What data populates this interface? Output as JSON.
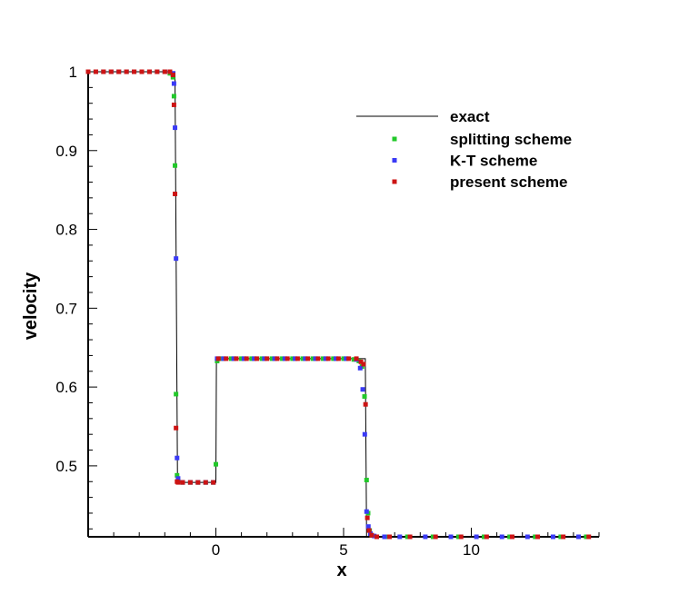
{
  "chart_data": {
    "type": "scatter",
    "xlabel": "x",
    "ylabel": "velocity",
    "xlim": [
      -5,
      15
    ],
    "ylim": [
      0.41,
      1.0
    ],
    "grid": false,
    "legend_position": "top-right",
    "x_ticks": [
      0,
      5,
      10
    ],
    "x_tick_labels": [
      "0",
      "5",
      "10"
    ],
    "y_ticks": [
      0.5,
      0.6,
      0.7,
      0.8,
      0.9,
      1.0
    ],
    "y_tick_labels": [
      "0.5",
      "0.6",
      "0.7",
      "0.8",
      "0.9",
      "1"
    ],
    "line": {
      "name": "exact",
      "color": "#000000",
      "x": [
        -5,
        -1.6,
        -1.5,
        0,
        0.02,
        5.85,
        5.9,
        15
      ],
      "y": [
        1.0,
        1.0,
        0.479,
        0.479,
        0.636,
        0.636,
        0.41,
        0.41
      ]
    },
    "series": [
      {
        "name": "splitting scheme",
        "color": "#22c82a",
        "x": [
          -5.0,
          -4.7,
          -4.4,
          -4.1,
          -3.8,
          -3.5,
          -3.2,
          -2.9,
          -2.6,
          -2.3,
          -2.0,
          -1.8,
          -1.68,
          -1.64,
          -1.6,
          -1.56,
          -1.52,
          -1.48,
          -1.3,
          -1.0,
          -0.7,
          -0.4,
          -0.1,
          0.0,
          0.05,
          0.2,
          0.6,
          1.0,
          1.4,
          1.8,
          2.2,
          2.6,
          3.0,
          3.4,
          3.8,
          4.2,
          4.6,
          5.0,
          5.4,
          5.6,
          5.72,
          5.82,
          5.9,
          5.96,
          6.02,
          6.1,
          6.3,
          6.7,
          7.5,
          8.5,
          9.5,
          10.5,
          11.5,
          12.5,
          13.5,
          14.5
        ],
        "y": [
          1.0,
          1.0,
          1.0,
          1.0,
          1.0,
          1.0,
          1.0,
          1.0,
          1.0,
          1.0,
          1.0,
          0.998,
          0.993,
          0.969,
          0.881,
          0.591,
          0.488,
          0.481,
          0.479,
          0.479,
          0.479,
          0.479,
          0.479,
          0.502,
          0.633,
          0.636,
          0.636,
          0.636,
          0.636,
          0.636,
          0.636,
          0.636,
          0.636,
          0.636,
          0.636,
          0.636,
          0.636,
          0.636,
          0.635,
          0.633,
          0.626,
          0.588,
          0.482,
          0.44,
          0.418,
          0.412,
          0.41,
          0.41,
          0.41,
          0.41,
          0.41,
          0.41,
          0.41,
          0.41,
          0.41,
          0.41
        ]
      },
      {
        "name": "K-T scheme",
        "color": "#3a3af5",
        "x": [
          -5.0,
          -4.7,
          -4.4,
          -4.1,
          -3.8,
          -3.5,
          -3.2,
          -2.9,
          -2.6,
          -2.3,
          -2.0,
          -1.8,
          -1.68,
          -1.64,
          -1.6,
          -1.56,
          -1.52,
          -1.48,
          -1.3,
          -1.0,
          -0.7,
          -0.4,
          -0.1,
          0.05,
          0.3,
          0.7,
          1.1,
          1.5,
          1.9,
          2.3,
          2.7,
          3.1,
          3.5,
          3.9,
          4.3,
          4.7,
          5.1,
          5.5,
          5.65,
          5.75,
          5.83,
          5.9,
          5.97,
          6.05,
          6.2,
          6.6,
          7.2,
          8.2,
          9.2,
          10.2,
          11.2,
          12.2,
          13.2,
          14.2
        ],
        "y": [
          1.0,
          1.0,
          1.0,
          1.0,
          1.0,
          1.0,
          1.0,
          1.0,
          1.0,
          1.0,
          1.0,
          1.0,
          0.998,
          0.985,
          0.929,
          0.763,
          0.51,
          0.484,
          0.479,
          0.479,
          0.479,
          0.479,
          0.479,
          0.636,
          0.636,
          0.636,
          0.636,
          0.636,
          0.636,
          0.636,
          0.636,
          0.636,
          0.636,
          0.636,
          0.636,
          0.636,
          0.636,
          0.635,
          0.624,
          0.597,
          0.54,
          0.442,
          0.423,
          0.414,
          0.411,
          0.41,
          0.41,
          0.41,
          0.41,
          0.41,
          0.41,
          0.41,
          0.41,
          0.41
        ]
      },
      {
        "name": "present scheme",
        "color": "#cc1414",
        "x": [
          -5.0,
          -4.7,
          -4.4,
          -4.1,
          -3.8,
          -3.5,
          -3.2,
          -2.9,
          -2.6,
          -2.3,
          -2.0,
          -1.8,
          -1.68,
          -1.64,
          -1.6,
          -1.56,
          -1.52,
          -1.48,
          -1.3,
          -1.0,
          -0.7,
          -0.4,
          -0.1,
          0.1,
          0.4,
          0.8,
          1.2,
          1.6,
          2.0,
          2.4,
          2.8,
          3.2,
          3.6,
          4.0,
          4.4,
          4.8,
          5.2,
          5.5,
          5.68,
          5.78,
          5.86,
          5.93,
          6.0,
          6.1,
          6.3,
          6.8,
          7.6,
          8.6,
          9.6,
          10.6,
          11.6,
          12.6,
          13.6,
          14.6
        ],
        "y": [
          1.0,
          1.0,
          1.0,
          1.0,
          1.0,
          1.0,
          1.0,
          1.0,
          1.0,
          1.0,
          1.0,
          1.0,
          0.996,
          0.958,
          0.845,
          0.548,
          0.48,
          0.479,
          0.479,
          0.479,
          0.479,
          0.479,
          0.479,
          0.636,
          0.636,
          0.636,
          0.636,
          0.636,
          0.636,
          0.636,
          0.636,
          0.636,
          0.636,
          0.636,
          0.636,
          0.636,
          0.636,
          0.636,
          0.632,
          0.629,
          0.578,
          0.434,
          0.418,
          0.412,
          0.41,
          0.41,
          0.41,
          0.41,
          0.41,
          0.41,
          0.41,
          0.41,
          0.41,
          0.41
        ]
      }
    ]
  }
}
